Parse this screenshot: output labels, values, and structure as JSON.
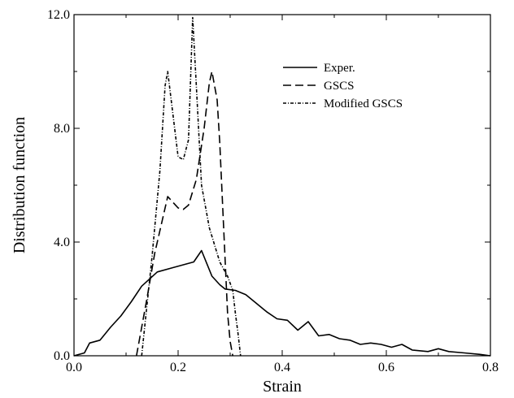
{
  "chart_data": {
    "type": "line",
    "title": "",
    "xlabel": "Strain",
    "ylabel": "Distribution function",
    "xlim": [
      0.0,
      0.8
    ],
    "ylim": [
      0.0,
      12.0
    ],
    "x_ticks": [
      0.0,
      0.2,
      0.4,
      0.6,
      0.8
    ],
    "x_tick_labels": [
      "0.0",
      "0.2",
      "0.4",
      "0.6",
      "0.8"
    ],
    "y_ticks": [
      0.0,
      4.0,
      8.0,
      12.0
    ],
    "y_tick_labels": [
      "0.0",
      "4.0",
      "8.0",
      "12.0"
    ],
    "grid": false,
    "legend_position": "upper-right",
    "series": [
      {
        "name": "Exper.",
        "line_style": "solid",
        "color": "#000000",
        "points": [
          [
            0.0,
            0.0
          ],
          [
            0.02,
            0.1
          ],
          [
            0.03,
            0.45
          ],
          [
            0.05,
            0.55
          ],
          [
            0.07,
            1.0
          ],
          [
            0.09,
            1.4
          ],
          [
            0.11,
            1.9
          ],
          [
            0.13,
            2.45
          ],
          [
            0.16,
            2.95
          ],
          [
            0.19,
            3.1
          ],
          [
            0.21,
            3.2
          ],
          [
            0.23,
            3.3
          ],
          [
            0.245,
            3.7
          ],
          [
            0.265,
            2.8
          ],
          [
            0.28,
            2.5
          ],
          [
            0.29,
            2.35
          ],
          [
            0.31,
            2.3
          ],
          [
            0.33,
            2.15
          ],
          [
            0.35,
            1.85
          ],
          [
            0.37,
            1.55
          ],
          [
            0.39,
            1.3
          ],
          [
            0.41,
            1.25
          ],
          [
            0.43,
            0.9
          ],
          [
            0.45,
            1.2
          ],
          [
            0.47,
            0.7
          ],
          [
            0.49,
            0.75
          ],
          [
            0.51,
            0.6
          ],
          [
            0.53,
            0.55
          ],
          [
            0.55,
            0.4
          ],
          [
            0.57,
            0.45
          ],
          [
            0.59,
            0.4
          ],
          [
            0.61,
            0.3
          ],
          [
            0.63,
            0.4
          ],
          [
            0.65,
            0.2
          ],
          [
            0.68,
            0.15
          ],
          [
            0.7,
            0.25
          ],
          [
            0.72,
            0.15
          ],
          [
            0.75,
            0.1
          ],
          [
            0.78,
            0.05
          ],
          [
            0.8,
            0.0
          ]
        ]
      },
      {
        "name": "GSCS",
        "line_style": "dashed",
        "color": "#000000",
        "points": [
          [
            0.12,
            0.0
          ],
          [
            0.14,
            2.0
          ],
          [
            0.155,
            3.6
          ],
          [
            0.17,
            4.8
          ],
          [
            0.18,
            5.6
          ],
          [
            0.19,
            5.4
          ],
          [
            0.2,
            5.2
          ],
          [
            0.21,
            5.15
          ],
          [
            0.22,
            5.3
          ],
          [
            0.235,
            6.2
          ],
          [
            0.25,
            8.0
          ],
          [
            0.26,
            9.6
          ],
          [
            0.265,
            10.0
          ],
          [
            0.275,
            9.0
          ],
          [
            0.28,
            7.5
          ],
          [
            0.285,
            5.5
          ],
          [
            0.29,
            3.5
          ],
          [
            0.295,
            1.5
          ],
          [
            0.3,
            0.5
          ],
          [
            0.305,
            0.0
          ]
        ]
      },
      {
        "name": "Modified GSCS",
        "line_style": "dash-dot",
        "color": "#000000",
        "points": [
          [
            0.13,
            0.0
          ],
          [
            0.15,
            3.5
          ],
          [
            0.165,
            6.5
          ],
          [
            0.175,
            9.5
          ],
          [
            0.18,
            10.0
          ],
          [
            0.19,
            8.5
          ],
          [
            0.2,
            7.0
          ],
          [
            0.21,
            6.9
          ],
          [
            0.22,
            7.6
          ],
          [
            0.228,
            11.9
          ],
          [
            0.235,
            9.5
          ],
          [
            0.245,
            6.0
          ],
          [
            0.26,
            4.5
          ],
          [
            0.28,
            3.3
          ],
          [
            0.295,
            2.8
          ],
          [
            0.305,
            2.3
          ],
          [
            0.31,
            1.5
          ],
          [
            0.315,
            0.8
          ],
          [
            0.32,
            0.0
          ]
        ]
      }
    ]
  }
}
